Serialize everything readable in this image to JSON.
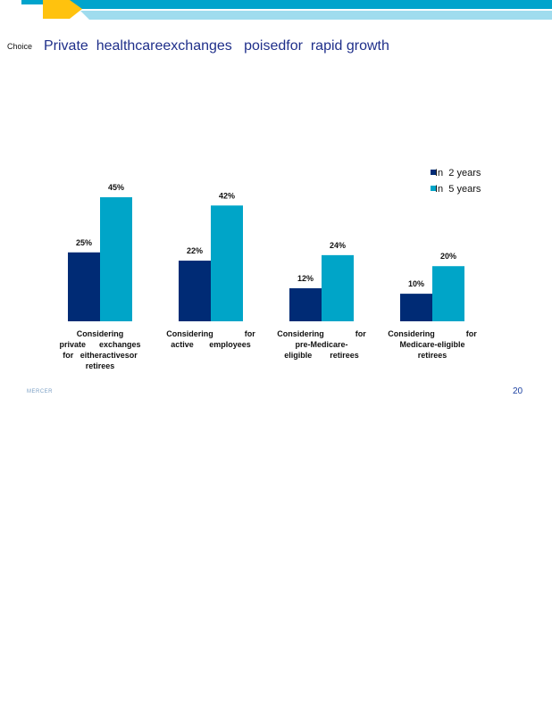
{
  "header": {
    "section_label": "Choice",
    "title": "Private  healthcareexchanges   poisedfor  rapid growth"
  },
  "footer": {
    "brand": "MERCER",
    "page_number": "20"
  },
  "colors": {
    "accent_yellow": "#ffc20e",
    "band_dark": "#00a4cc",
    "band_light": "#9fdcee",
    "title_blue": "#1f2f8a",
    "series_2yr": "#002b75",
    "series_5yr": "#00a5c8"
  },
  "chart_data": {
    "type": "bar",
    "categories": [
      [
        "Considering",
        "private      exchanges",
        "for   eitheractivesor",
        "retirees"
      ],
      [
        "Considering              for",
        "active       employees"
      ],
      [
        "Considering              for",
        "pre-Medicare-",
        "eligible        retirees"
      ],
      [
        "Considering              for",
        "Medicare-eligible",
        "retirees"
      ]
    ],
    "series": [
      {
        "name": "In  2 years",
        "values": [
          25,
          22,
          12,
          10
        ],
        "labels": [
          "25%",
          "22%",
          "12%",
          "10%"
        ],
        "color": "#002b75"
      },
      {
        "name": "In  5 years",
        "values": [
          45,
          42,
          24,
          20
        ],
        "labels": [
          "45%",
          "42%",
          "24%",
          "20%"
        ],
        "color": "#00a5c8"
      }
    ],
    "ylim": [
      0,
      45
    ],
    "grid": false,
    "legend": "top-right",
    "title": "",
    "xlabel": "",
    "ylabel": ""
  }
}
